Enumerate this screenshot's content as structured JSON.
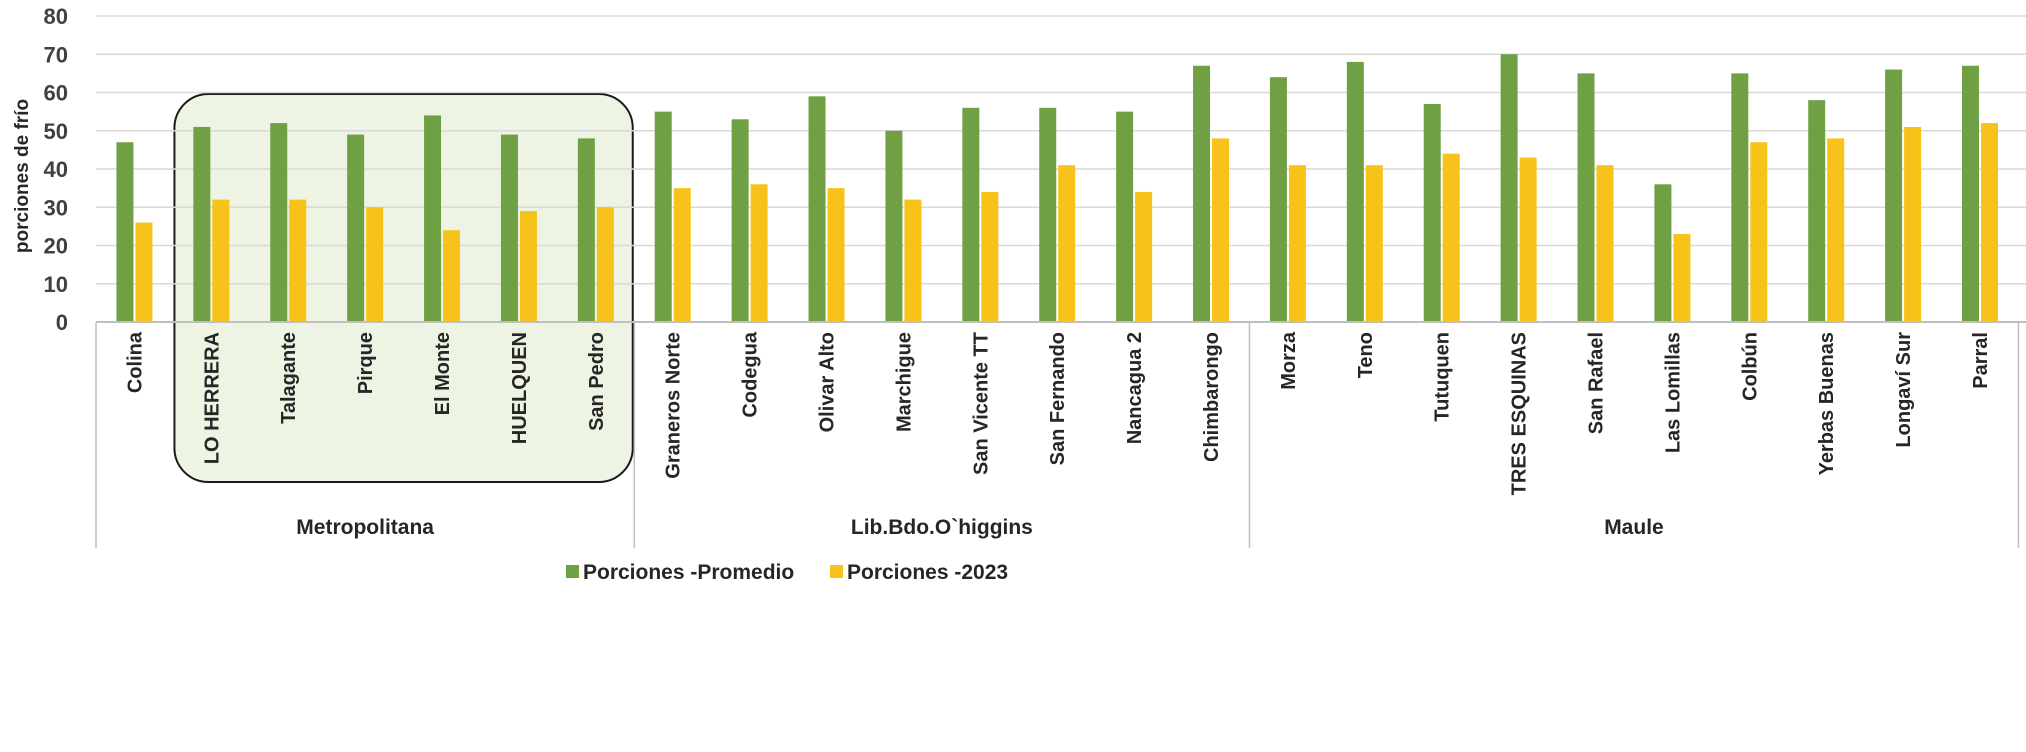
{
  "chart_data": {
    "type": "bar",
    "ylabel": "porciones de frío",
    "ylim": [
      0,
      80
    ],
    "yticks": [
      0,
      10,
      20,
      30,
      40,
      50,
      60,
      70,
      80
    ],
    "grid": true,
    "legend_position": "bottom",
    "categories": [
      "Colina",
      "LO HERRERA",
      "Talagante",
      "Pirque",
      "El Monte",
      "HUELQUEN",
      "San Pedro",
      "Graneros Norte",
      "Codegua",
      "Olivar Alto",
      "Marchigue",
      "San Vicente TT",
      "San Fernando",
      "Nancagua 2",
      "Chimbarongo",
      "Morza",
      "Teno",
      "Tutuquen",
      "TRES ESQUINAS",
      "San Rafael",
      "Las Lomillas",
      "Colbún",
      "Yerbas Buenas",
      "Longaví Sur",
      "Parral"
    ],
    "groups": [
      {
        "name": "Metropolitana",
        "count": 7
      },
      {
        "name": "Lib.Bdo.O`higgins",
        "count": 8
      },
      {
        "name": "Maule",
        "count": 10
      }
    ],
    "highlight": {
      "from": 1,
      "to": 6,
      "color": "#eef4e4"
    },
    "series": [
      {
        "name": "Porciones -Promedio",
        "color": "#70a044",
        "values": [
          47,
          51,
          52,
          49,
          54,
          49,
          48,
          55,
          53,
          59,
          50,
          56,
          56,
          55,
          67,
          64,
          68,
          57,
          70,
          65,
          36,
          65,
          58,
          66,
          67
        ]
      },
      {
        "name": "Porciones -2023",
        "color": "#f7c31a",
        "values": [
          26,
          32,
          32,
          30,
          24,
          29,
          30,
          35,
          36,
          35,
          32,
          34,
          41,
          34,
          48,
          41,
          41,
          44,
          43,
          41,
          23,
          47,
          48,
          51,
          52
        ]
      }
    ]
  }
}
